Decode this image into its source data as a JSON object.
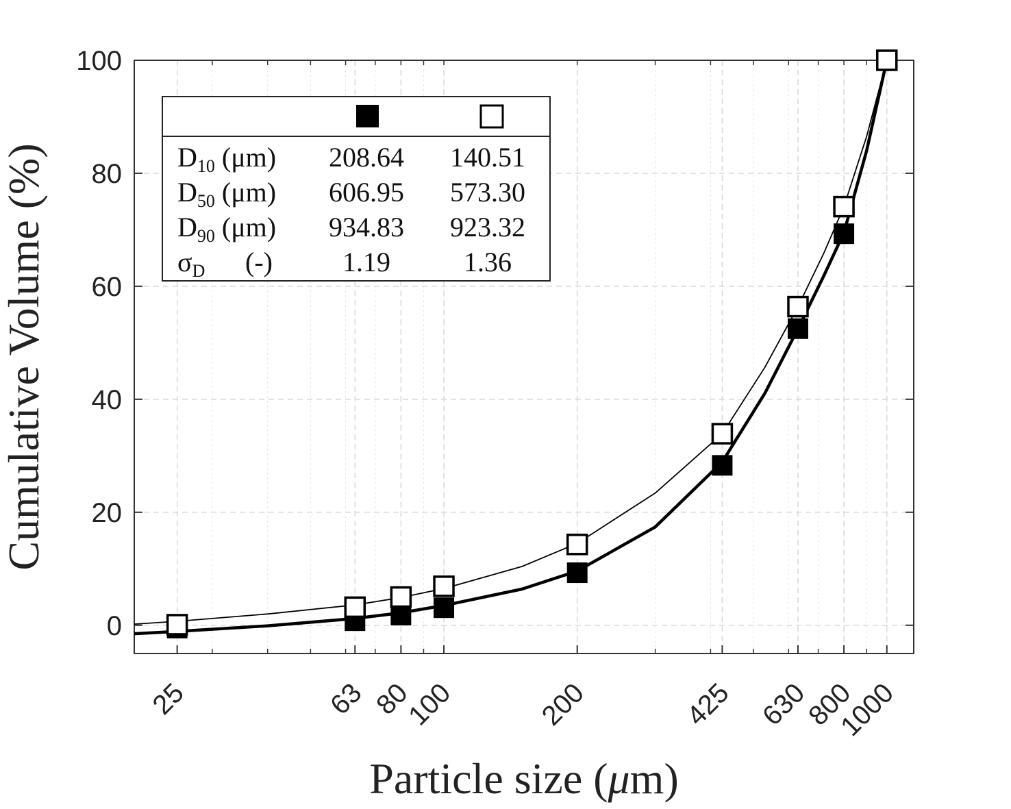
{
  "chart_data": {
    "type": "scatter",
    "xscale": "log",
    "xlim": [
      20,
      1150
    ],
    "ylim": [
      -5,
      100
    ],
    "grid": true,
    "xlabel_main": "Particle size (",
    "xlabel_mu": "μ",
    "xlabel_tail": "m)",
    "ylabel": "Cumulative Volume (%)",
    "xticks": [
      25,
      63,
      80,
      100,
      200,
      425,
      630,
      800,
      1000
    ],
    "xtick_labels": [
      "25",
      "63",
      "80",
      "100",
      "200",
      "425",
      "630",
      "800",
      "1000"
    ],
    "yticks": [
      0,
      20,
      40,
      60,
      80,
      100
    ],
    "ytick_labels": [
      "0",
      "20",
      "40",
      "60",
      "80",
      "100"
    ],
    "series": [
      {
        "name": "filled",
        "marker": "filled-square",
        "x": [
          25,
          63,
          80,
          100,
          200,
          425,
          630,
          800,
          1000
        ],
        "y": [
          -0.5,
          0.8,
          1.8,
          3.1,
          9.3,
          28.3,
          52.5,
          69.3,
          100
        ],
        "fit_x": [
          20,
          25,
          40,
          63,
          80,
          100,
          150,
          200,
          300,
          425,
          530,
          630,
          720,
          800,
          900,
          1000
        ],
        "fit_y": [
          -1.5,
          -1.1,
          -0.1,
          1.2,
          2.2,
          3.5,
          6.4,
          9.6,
          17.4,
          28.9,
          41.0,
          52.5,
          61.8,
          69.5,
          84.0,
          100
        ]
      },
      {
        "name": "open",
        "marker": "open-square",
        "x": [
          25,
          63,
          80,
          100,
          200,
          425,
          630,
          800,
          1000
        ],
        "y": [
          0.1,
          3.2,
          5.0,
          6.9,
          14.3,
          33.9,
          56.4,
          74.1,
          100
        ],
        "fit_x": [
          20,
          25,
          40,
          63,
          80,
          100,
          150,
          200,
          300,
          425,
          530,
          630,
          720,
          800,
          900,
          1000
        ],
        "fit_y": [
          0.2,
          0.7,
          2.0,
          3.6,
          4.9,
          6.5,
          10.4,
          14.5,
          23.4,
          33.9,
          45.6,
          56.4,
          65.8,
          74.1,
          86.5,
          100
        ]
      }
    ],
    "table": {
      "rows": [
        {
          "label": "D",
          "sub": "10",
          "unit": " (μm)",
          "filled": "208.64",
          "open": "140.51"
        },
        {
          "label": "D",
          "sub": "50",
          "unit": " (μm)",
          "filled": "606.95",
          "open": "573.30"
        },
        {
          "label": "D",
          "sub": "90",
          "unit": " (μm)",
          "filled": "934.83",
          "open": "923.32"
        },
        {
          "label": "σ",
          "sub": "D",
          "unit": "(-)",
          "filled": "1.19",
          "open": "1.36"
        }
      ]
    }
  }
}
